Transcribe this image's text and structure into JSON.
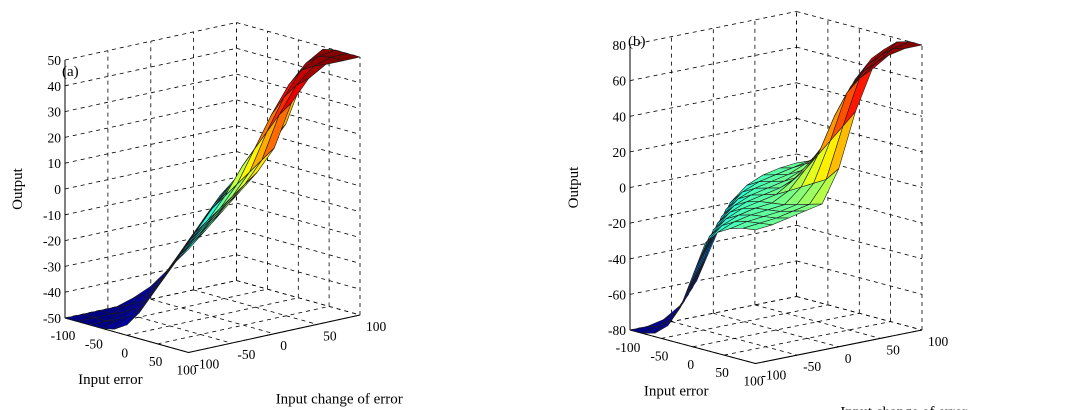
{
  "chart_data": [
    {
      "type": "surface",
      "panel_label": "(a)",
      "xlabel": "Input error",
      "ylabel": "Input change of error",
      "zlabel": "Output",
      "xlim": [
        -100,
        100
      ],
      "ylim": [
        -100,
        100
      ],
      "zlim": [
        -50,
        50
      ],
      "x_ticks": [
        "-100",
        "-50",
        "0",
        "50",
        "100"
      ],
      "y_ticks": [
        "-100",
        "-50",
        "0",
        "50",
        "100"
      ],
      "z_ticks": [
        "-50",
        "-40",
        "-30",
        "-20",
        "-10",
        "0",
        "10",
        "20",
        "30",
        "40",
        "50"
      ],
      "grid": true,
      "colormap": "jet",
      "x": [
        -100,
        -80,
        -60,
        -40,
        -20,
        0,
        20,
        40,
        60,
        80,
        100
      ],
      "y": [
        -100,
        -80,
        -60,
        -40,
        -20,
        0,
        20,
        40,
        60,
        80,
        100
      ],
      "z": [
        [
          -50,
          -50,
          -50,
          -50,
          -49,
          -46,
          -40,
          -32,
          -24,
          -16,
          -10
        ],
        [
          -50,
          -50,
          -50,
          -48,
          -45,
          -40,
          -32,
          -24,
          -16,
          -10,
          -4
        ],
        [
          -50,
          -50,
          -48,
          -45,
          -40,
          -32,
          -24,
          -16,
          -10,
          -4,
          2
        ],
        [
          -50,
          -48,
          -45,
          -40,
          -32,
          -24,
          -16,
          -10,
          -4,
          2,
          8
        ],
        [
          -48,
          -45,
          -40,
          -32,
          -24,
          -16,
          -10,
          -4,
          2,
          8,
          14
        ],
        [
          -45,
          -40,
          -32,
          -24,
          -16,
          -8,
          -2,
          4,
          10,
          16,
          22
        ],
        [
          -40,
          -32,
          -24,
          -16,
          -10,
          -2,
          8,
          16,
          24,
          32,
          38
        ],
        [
          -32,
          -24,
          -16,
          -10,
          -4,
          6,
          16,
          28,
          36,
          42,
          46
        ],
        [
          -24,
          -16,
          -10,
          -4,
          4,
          14,
          28,
          38,
          45,
          48,
          50
        ],
        [
          -16,
          -10,
          -4,
          2,
          10,
          22,
          36,
          45,
          49,
          50,
          50
        ],
        [
          -10,
          -4,
          2,
          8,
          16,
          30,
          42,
          49,
          50,
          50,
          50
        ]
      ]
    },
    {
      "type": "surface",
      "panel_label": "(b)",
      "xlabel": "Input error",
      "ylabel": "Input change of error",
      "zlabel": "Output",
      "xlim": [
        -100,
        100
      ],
      "ylim": [
        -100,
        100
      ],
      "zlim": [
        -80,
        80
      ],
      "x_ticks": [
        "-100",
        "-50",
        "0",
        "50",
        "100"
      ],
      "y_ticks": [
        "-100",
        "-50",
        "0",
        "50",
        "100"
      ],
      "z_ticks": [
        "-80",
        "-60",
        "-40",
        "-20",
        "0",
        "20",
        "40",
        "60",
        "80"
      ],
      "grid": true,
      "colormap": "jet",
      "x": [
        -100,
        -80,
        -60,
        -40,
        -20,
        0,
        20,
        40,
        60,
        80,
        100
      ],
      "y": [
        -100,
        -80,
        -60,
        -40,
        -20,
        0,
        20,
        40,
        60,
        80,
        100
      ],
      "z": [
        [
          -80,
          -80,
          -78,
          -72,
          -60,
          -40,
          -20,
          -12,
          -8,
          -6,
          -5
        ],
        [
          -80,
          -78,
          -72,
          -60,
          -40,
          -20,
          -12,
          -8,
          -6,
          -5,
          -4
        ],
        [
          -78,
          -72,
          -60,
          -40,
          -20,
          -12,
          -8,
          -6,
          -5,
          -4,
          -2
        ],
        [
          -72,
          -60,
          -40,
          -20,
          -12,
          -8,
          -6,
          -5,
          -4,
          -2,
          0
        ],
        [
          -60,
          -40,
          -20,
          -12,
          -8,
          -6,
          -5,
          -4,
          -2,
          0,
          2
        ],
        [
          -40,
          -20,
          -12,
          -8,
          -6,
          -4,
          0,
          4,
          8,
          12,
          20
        ],
        [
          -20,
          -12,
          -8,
          -6,
          -4,
          2,
          10,
          20,
          30,
          40,
          50
        ],
        [
          -12,
          -8,
          -6,
          -4,
          0,
          10,
          20,
          40,
          55,
          65,
          72
        ],
        [
          -8,
          -6,
          -4,
          0,
          4,
          20,
          40,
          55,
          65,
          72,
          78
        ],
        [
          -6,
          -4,
          0,
          4,
          10,
          35,
          55,
          65,
          72,
          78,
          80
        ],
        [
          -5,
          -2,
          4,
          10,
          20,
          50,
          65,
          72,
          78,
          80,
          80
        ]
      ]
    }
  ]
}
